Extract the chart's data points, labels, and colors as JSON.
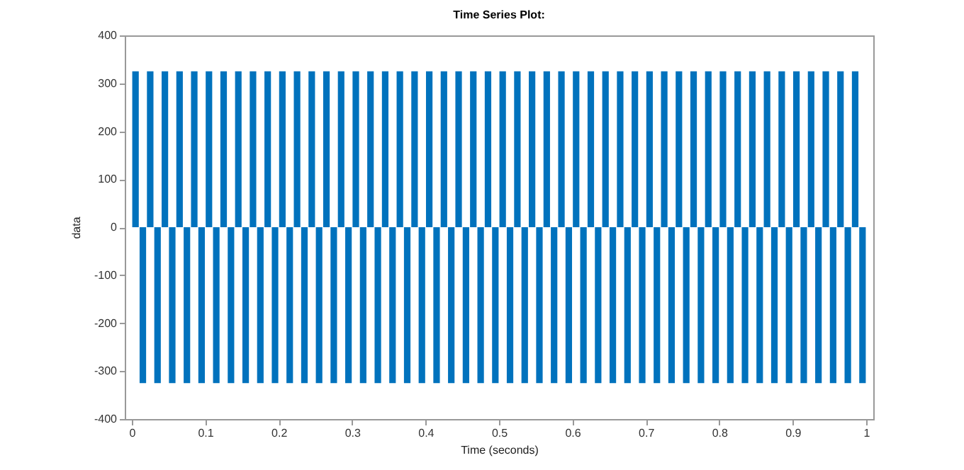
{
  "chart_data": {
    "type": "bar",
    "title": "Time Series Plot:",
    "xlabel": "Time (seconds)",
    "ylabel": "data",
    "x": [
      0.005,
      0.015,
      0.025,
      0.035,
      0.045,
      0.055,
      0.065,
      0.075,
      0.085,
      0.095,
      0.105,
      0.115,
      0.125,
      0.135,
      0.145,
      0.155,
      0.165,
      0.175,
      0.185,
      0.195,
      0.205,
      0.215,
      0.225,
      0.235,
      0.245,
      0.255,
      0.265,
      0.275,
      0.285,
      0.295,
      0.305,
      0.315,
      0.325,
      0.335,
      0.345,
      0.355,
      0.365,
      0.375,
      0.385,
      0.395,
      0.405,
      0.415,
      0.425,
      0.435,
      0.445,
      0.455,
      0.465,
      0.475,
      0.485,
      0.495,
      0.505,
      0.515,
      0.525,
      0.535,
      0.545,
      0.555,
      0.565,
      0.575,
      0.585,
      0.595,
      0.605,
      0.615,
      0.625,
      0.635,
      0.645,
      0.655,
      0.665,
      0.675,
      0.685,
      0.695,
      0.705,
      0.715,
      0.725,
      0.735,
      0.745,
      0.755,
      0.765,
      0.775,
      0.785,
      0.795,
      0.805,
      0.815,
      0.825,
      0.835,
      0.845,
      0.855,
      0.865,
      0.875,
      0.885,
      0.895,
      0.905,
      0.915,
      0.925,
      0.935,
      0.945,
      0.955,
      0.965,
      0.975,
      0.985,
      0.995
    ],
    "values": [
      325,
      -325,
      325,
      -325,
      325,
      -325,
      325,
      -325,
      325,
      -325,
      325,
      -325,
      325,
      -325,
      325,
      -325,
      325,
      -325,
      325,
      -325,
      325,
      -325,
      325,
      -325,
      325,
      -325,
      325,
      -325,
      325,
      -325,
      325,
      -325,
      325,
      -325,
      325,
      -325,
      325,
      -325,
      325,
      -325,
      325,
      -325,
      325,
      -325,
      325,
      -325,
      325,
      -325,
      325,
      -325,
      325,
      -325,
      325,
      -325,
      325,
      -325,
      325,
      -325,
      325,
      -325,
      325,
      -325,
      325,
      -325,
      325,
      -325,
      325,
      -325,
      325,
      -325,
      325,
      -325,
      325,
      -325,
      325,
      -325,
      325,
      -325,
      325,
      -325,
      325,
      -325,
      325,
      -325,
      325,
      -325,
      325,
      -325,
      325,
      -325,
      325,
      -325,
      325,
      -325,
      325,
      -325,
      325,
      -325,
      325,
      -325
    ],
    "color": "#0072bd",
    "xlim": [
      0,
      1
    ],
    "xticks": [
      0,
      0.1,
      0.2,
      0.3,
      0.4,
      0.5,
      0.6,
      0.7,
      0.8,
      0.9,
      1
    ],
    "ylim": [
      -400,
      400
    ],
    "yticks": [
      -400,
      -300,
      -200,
      -100,
      0,
      100,
      200,
      300,
      400
    ]
  }
}
